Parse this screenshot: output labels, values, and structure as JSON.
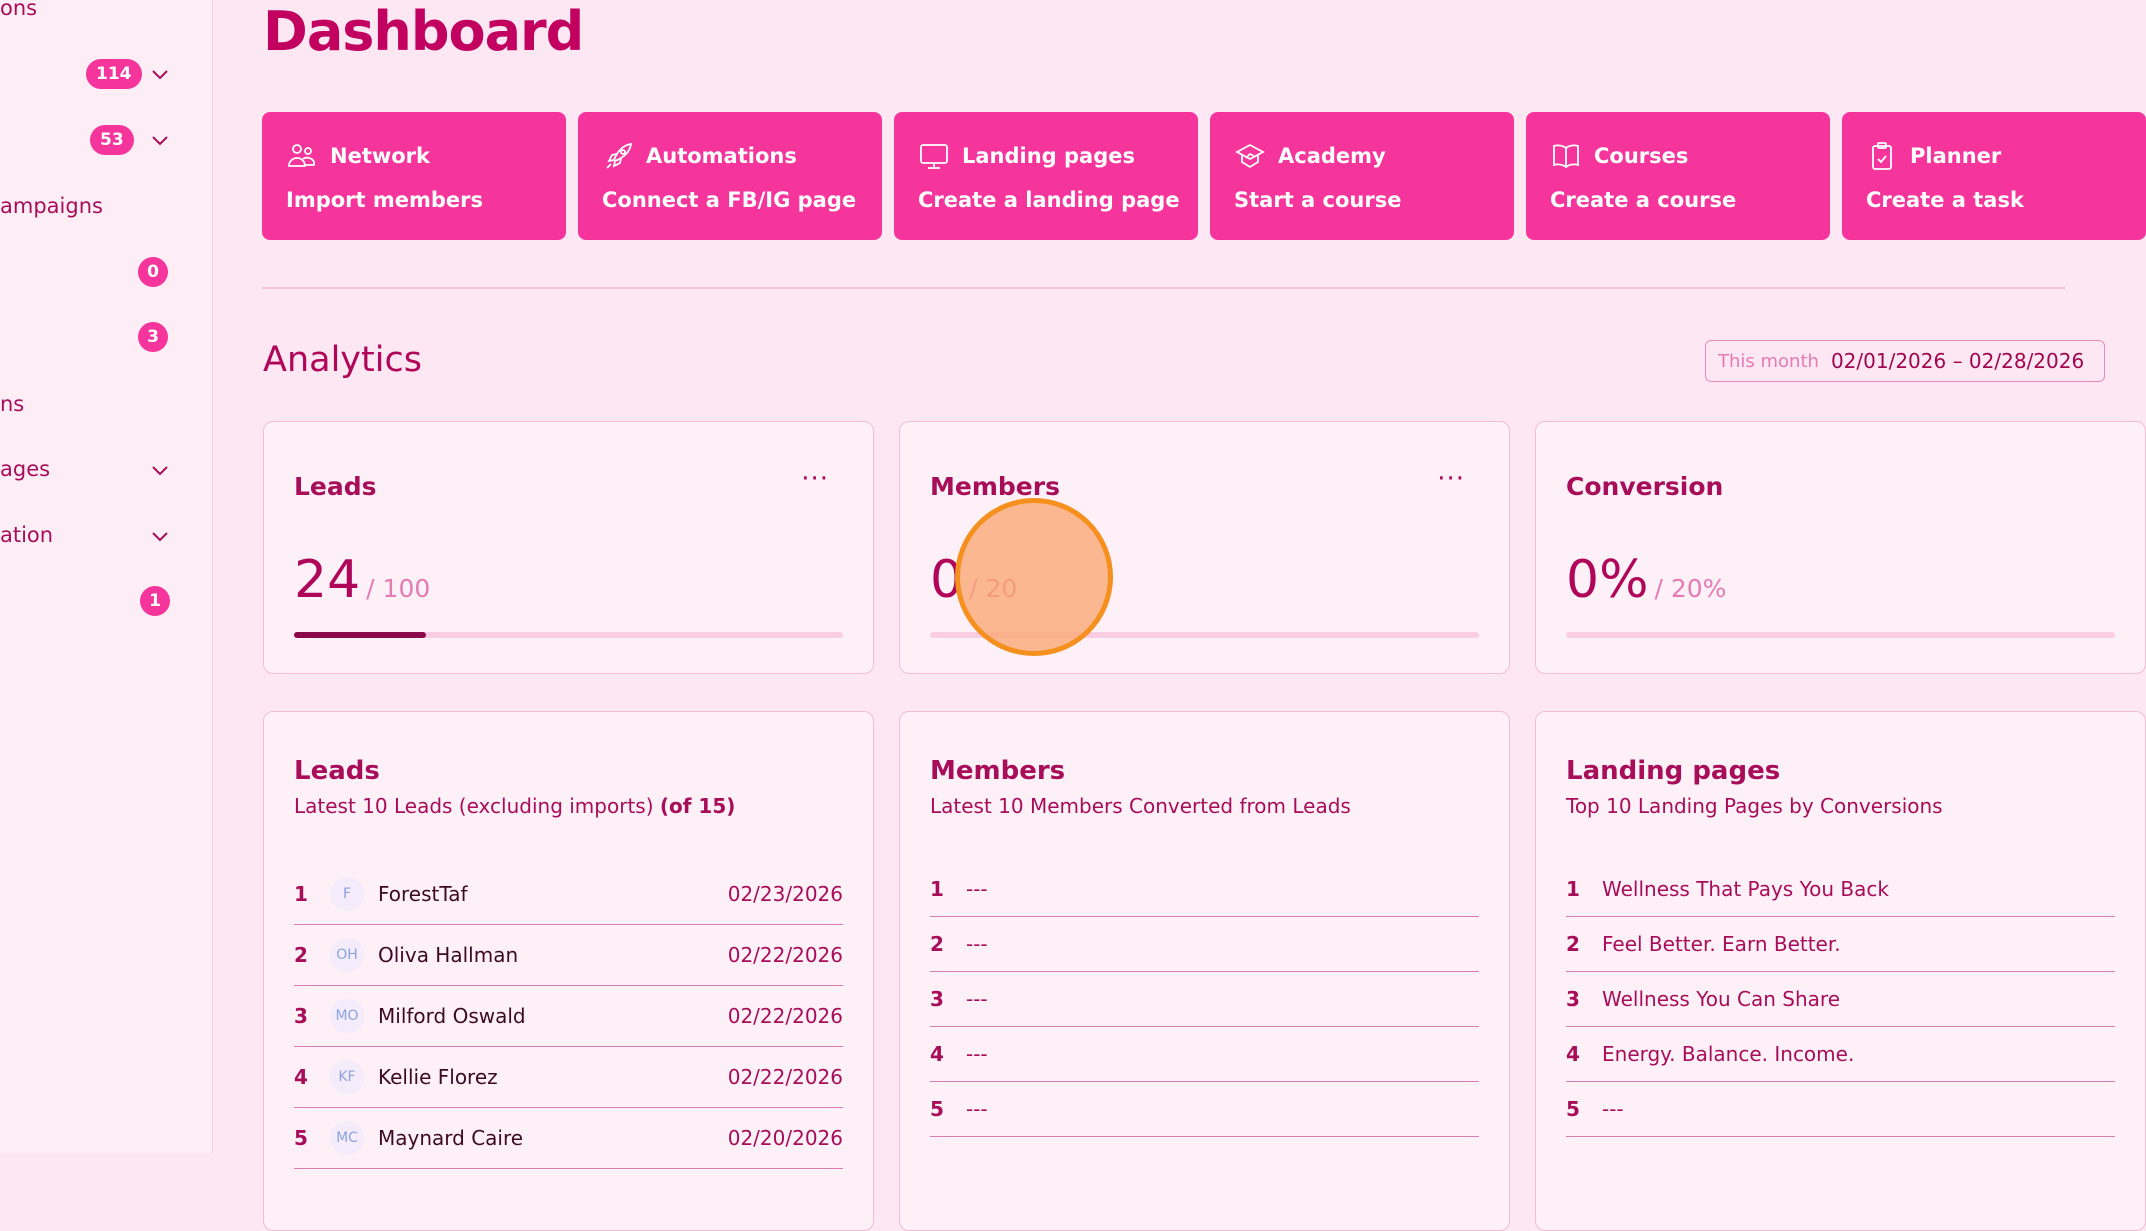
{
  "sidebar": {
    "items": [
      {
        "label": "ons"
      },
      {
        "badge": "114",
        "chevron": true
      },
      {
        "badge": "53",
        "chevron": true
      },
      {
        "label": "ampaigns"
      },
      {
        "badge": "0"
      },
      {
        "badge": "3"
      },
      {
        "label": "ns"
      },
      {
        "label": "ages",
        "chevron": true
      },
      {
        "label": "ation",
        "chevron": true
      },
      {
        "badge": "1"
      }
    ]
  },
  "page_title": "Dashboard",
  "shortcuts": [
    {
      "title": "Network",
      "action": "Import members",
      "icon": "users-icon"
    },
    {
      "title": "Automations",
      "action": "Connect a FB/IG page",
      "icon": "rocket-icon"
    },
    {
      "title": "Landing pages",
      "action": "Create a landing page",
      "icon": "monitor-icon"
    },
    {
      "title": "Academy",
      "action": "Start a course",
      "icon": "graduation-cap-icon"
    },
    {
      "title": "Courses",
      "action": "Create a course",
      "icon": "book-icon"
    },
    {
      "title": "Planner",
      "action": "Create a task",
      "icon": "clipboard-check-icon"
    }
  ],
  "analytics": {
    "title": "Analytics",
    "date_range": {
      "label": "This month",
      "value": "02/01/2026 – 02/28/2026"
    },
    "stats": [
      {
        "title": "Leads",
        "value": "24",
        "target": "/ 100",
        "progress": 0.24,
        "menu": "···"
      },
      {
        "title": "Members",
        "value": "0",
        "target": "/ 20",
        "progress": 0,
        "menu": "···"
      },
      {
        "title": "Conversion",
        "value": "0%",
        "target": "/ 20%",
        "progress": 0
      }
    ]
  },
  "leads": {
    "title": "Leads",
    "subtitle": "Latest 10 Leads (excluding imports)",
    "count": "(of 15)",
    "rows": [
      {
        "n": "1",
        "initials": "F",
        "name": "ForestTaf",
        "date": "02/23/2026"
      },
      {
        "n": "2",
        "initials": "OH",
        "name": "Oliva Hallman",
        "date": "02/22/2026"
      },
      {
        "n": "3",
        "initials": "MO",
        "name": "Milford Oswald",
        "date": "02/22/2026"
      },
      {
        "n": "4",
        "initials": "KF",
        "name": "Kellie Florez",
        "date": "02/22/2026"
      },
      {
        "n": "5",
        "initials": "MC",
        "name": "Maynard Caire",
        "date": "02/20/2026"
      }
    ]
  },
  "members": {
    "title": "Members",
    "subtitle": "Latest 10 Members Converted from Leads",
    "rows": [
      {
        "n": "1",
        "v": "---"
      },
      {
        "n": "2",
        "v": "---"
      },
      {
        "n": "3",
        "v": "---"
      },
      {
        "n": "4",
        "v": "---"
      },
      {
        "n": "5",
        "v": "---"
      }
    ]
  },
  "landing_pages": {
    "title": "Landing pages",
    "subtitle": "Top 10 Landing Pages by Conversions",
    "rows": [
      {
        "n": "1",
        "v": "Wellness That Pays You Back"
      },
      {
        "n": "2",
        "v": "Feel Better. Earn Better."
      },
      {
        "n": "3",
        "v": "Wellness You Can Share"
      },
      {
        "n": "4",
        "v": "Energy. Balance. Income."
      },
      {
        "n": "5",
        "v": "---"
      }
    ]
  },
  "colors": {
    "accent": "#f5359b",
    "text": "#b0065a",
    "background": "#fde7f2",
    "progress": "#8b0a4a"
  }
}
